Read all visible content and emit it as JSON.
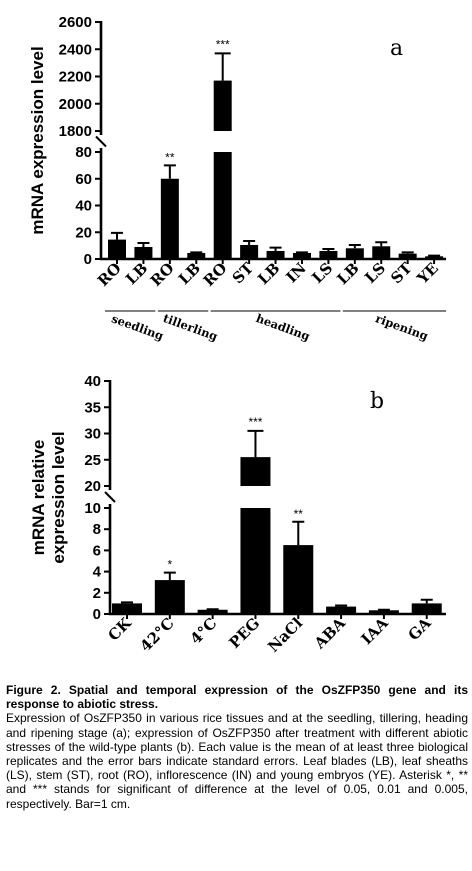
{
  "chart_data": [
    {
      "type": "bar",
      "panel_label": "a",
      "ylabel": "mRNA expression level",
      "categories": [
        "RO",
        "LB",
        "RO",
        "LB",
        "RO",
        "ST",
        "LB",
        "IN",
        "LS",
        "LB",
        "LS",
        "ST",
        "YE"
      ],
      "values": [
        14.5,
        9,
        60,
        4.5,
        2170,
        10.5,
        6,
        4.5,
        6,
        8,
        9.5,
        4,
        2
      ],
      "errors": [
        5,
        3,
        10,
        0.5,
        200,
        3,
        2.5,
        0.5,
        1.5,
        2.5,
        3,
        1,
        0.5
      ],
      "significance": [
        "",
        "",
        "**",
        "",
        "***",
        "",
        "",
        "",
        "",
        "",
        "",
        "",
        ""
      ],
      "groups": [
        {
          "label": "seedling",
          "categories": [
            "RO",
            "LB"
          ]
        },
        {
          "label": "tillerling",
          "categories": [
            "RO",
            "LB"
          ]
        },
        {
          "label": "headling",
          "categories": [
            "RO",
            "ST",
            "LB",
            "IN",
            "LS"
          ]
        },
        {
          "label": "ripening",
          "categories": [
            "LB",
            "LS",
            "ST",
            "YE"
          ]
        }
      ],
      "axis_break": {
        "lower_ylim": [
          0,
          80
        ],
        "upper_ylim": [
          1800,
          2600
        ]
      },
      "lower_ticks": [
        "0",
        "20",
        "40",
        "60",
        "80"
      ],
      "upper_ticks": [
        "1800",
        "2000",
        "2200",
        "2400",
        "2600"
      ]
    },
    {
      "type": "bar",
      "panel_label": "b",
      "ylabel_lines": [
        "mRNA relative",
        "expression level"
      ],
      "categories": [
        "CK",
        "42°C",
        "4°C",
        "PEG",
        "NaCl",
        "ABA",
        "IAA",
        "GA"
      ],
      "values": [
        1.0,
        3.2,
        0.4,
        25.5,
        6.5,
        0.7,
        0.35,
        1.0
      ],
      "errors": [
        0.1,
        0.7,
        0.05,
        5.0,
        2.2,
        0.1,
        0.05,
        0.35
      ],
      "significance": [
        "",
        "*",
        "",
        "***",
        "**",
        "",
        "",
        ""
      ],
      "axis_break": {
        "lower_ylim": [
          0,
          10
        ],
        "upper_ylim": [
          20,
          40
        ]
      },
      "lower_ticks": [
        "0",
        "2",
        "4",
        "6",
        "8",
        "10"
      ],
      "upper_ticks": [
        "20",
        "25",
        "30",
        "35",
        "40"
      ]
    }
  ],
  "caption": {
    "title": "Figure 2. Spatial and temporal expression of the OsZFP350 gene and its response to abiotic stress.",
    "body": "Expression of OsZFP350 in various rice tissues and at the seedling, tillering, heading and ripening stage (a); expression of OsZFP350 after treatment with different abiotic stresses of the wild-type plants (b). Each value is the mean of at least three biological replicates and the error bars indicate standard errors. Leaf blades (LB), leaf sheaths (LS), stem (ST), root (RO), inflorescence (IN) and young embryos (YE). Asterisk *, ** and *** stands for significant of difference at the level of 0.05, 0.01 and 0.005, respectively. Bar=1 cm."
  }
}
